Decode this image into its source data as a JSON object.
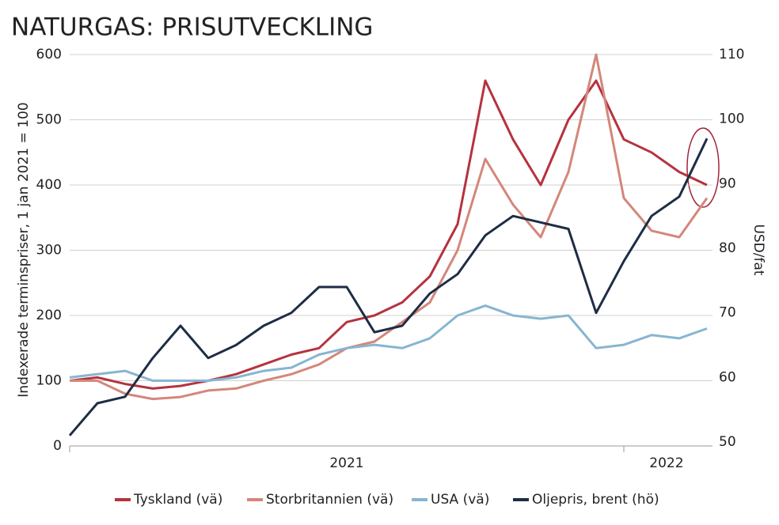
{
  "chart_data": {
    "type": "line",
    "title": "NATURGAS: PRISUTVECKLING",
    "ylabel": "Indexerade terminspriser, 1 jan 2021 = 100",
    "y2label": "USD/fat",
    "x": [
      2021.0,
      2021.05,
      2021.1,
      2021.15,
      2021.2,
      2021.25,
      2021.3,
      2021.35,
      2021.4,
      2021.45,
      2021.5,
      2021.55,
      2021.6,
      2021.65,
      2021.7,
      2021.75,
      2021.8,
      2021.85,
      2021.9,
      2021.95,
      2022.0,
      2022.05,
      2022.1,
      2022.15
    ],
    "xlim": [
      2021.0,
      2022.16
    ],
    "xticks": [
      2021,
      2022
    ],
    "xtick_labels": [
      {
        "value": 2021.5,
        "label": "2021"
      },
      {
        "value": 2022.077,
        "label": "2022"
      }
    ],
    "ylim": [
      0,
      600
    ],
    "yticks": [
      0,
      100,
      200,
      300,
      400,
      500,
      600
    ],
    "y2lim": [
      50,
      110
    ],
    "y2ticks": [
      50,
      60,
      70,
      80,
      90,
      100,
      110
    ],
    "grid": true,
    "legend": "bottom",
    "series": [
      {
        "name": "Tyskland (vä)",
        "color": "#b5333f",
        "values": [
          100,
          105,
          95,
          88,
          92,
          100,
          110,
          125,
          140,
          150,
          190,
          200,
          220,
          260,
          340,
          560,
          470,
          400,
          500,
          560,
          470,
          450,
          420,
          400
        ]
      },
      {
        "name": "Storbritannien (vä)",
        "color": "#d4877a",
        "values": [
          100,
          100,
          80,
          72,
          75,
          85,
          88,
          100,
          110,
          125,
          150,
          160,
          190,
          220,
          300,
          440,
          370,
          320,
          420,
          600,
          380,
          330,
          320,
          380
        ]
      },
      {
        "name": "USA (vä)",
        "color": "#87b5d2",
        "values": [
          105,
          110,
          115,
          100,
          100,
          100,
          105,
          115,
          120,
          140,
          150,
          155,
          150,
          165,
          200,
          215,
          200,
          195,
          200,
          150,
          155,
          170,
          165,
          180
        ]
      },
      {
        "name": "Oljepris, brent (hö)",
        "color": "#1e2d45",
        "axis": "y2",
        "values": [
          51,
          56,
          57,
          63,
          68,
          63,
          65,
          68,
          70,
          74,
          74,
          67,
          68,
          73,
          76,
          82,
          85,
          84,
          83,
          70,
          78,
          85,
          88,
          97
        ]
      }
    ]
  }
}
